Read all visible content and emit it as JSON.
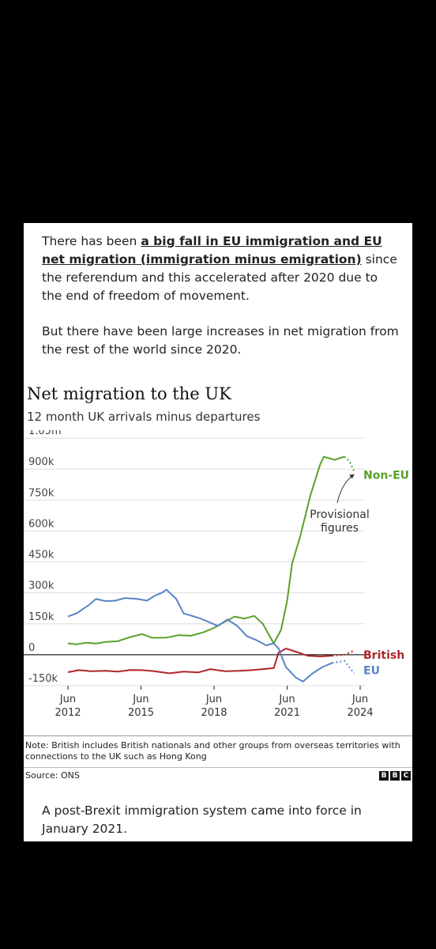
{
  "intro": {
    "p1_start": "There has been ",
    "p1_highlight": "a big fall in EU immigration and EU net migration (immigration minus emigration)",
    "p1_end": " since the referendum and this accelerated after 2020 due to the end of freedom of movement.",
    "p2": "But there have been large increases in net migration from the rest of the world since 2020."
  },
  "chart_data": {
    "type": "line",
    "title": "Net migration to the UK",
    "subtitle": "12 month UK arrivals minus departures",
    "ylim": [
      -150,
      1050
    ],
    "yticks": [
      {
        "v": 1050,
        "label": "1.05m"
      },
      {
        "v": 900,
        "label": "900k"
      },
      {
        "v": 750,
        "label": "750k"
      },
      {
        "v": 600,
        "label": "600k"
      },
      {
        "v": 450,
        "label": "450k"
      },
      {
        "v": 300,
        "label": "300k"
      },
      {
        "v": 150,
        "label": "150k"
      },
      {
        "v": 0,
        "label": "0"
      },
      {
        "v": -150,
        "label": "-150k"
      }
    ],
    "xlim": [
      2012.45,
      2024.45
    ],
    "xticks": [
      {
        "v": 2012.45,
        "line1": "Jun",
        "line2": "2012"
      },
      {
        "v": 2015.45,
        "line1": "Jun",
        "line2": "2015"
      },
      {
        "v": 2018.45,
        "line1": "Jun",
        "line2": "2018"
      },
      {
        "v": 2021.45,
        "line1": "Jun",
        "line2": "2021"
      },
      {
        "v": 2024.45,
        "line1": "Jun",
        "line2": "2024"
      }
    ],
    "annotation": {
      "line1": "Provisional",
      "line2": "figures"
    },
    "series": [
      {
        "name": "Non-EU",
        "color": "#5aa02c",
        "points": [
          [
            2012.45,
            55
          ],
          [
            2012.8,
            50
          ],
          [
            2013.2,
            58
          ],
          [
            2013.6,
            54
          ],
          [
            2014.0,
            62
          ],
          [
            2014.5,
            66
          ],
          [
            2015.0,
            85
          ],
          [
            2015.5,
            100
          ],
          [
            2015.9,
            82
          ],
          [
            2016.5,
            83
          ],
          [
            2017.0,
            95
          ],
          [
            2017.5,
            92
          ],
          [
            2018.0,
            108
          ],
          [
            2018.45,
            130
          ],
          [
            2018.9,
            160
          ],
          [
            2019.3,
            185
          ],
          [
            2019.7,
            175
          ],
          [
            2020.1,
            188
          ],
          [
            2020.45,
            150
          ],
          [
            2020.9,
            55
          ],
          [
            2021.2,
            120
          ],
          [
            2021.45,
            260
          ],
          [
            2021.65,
            440
          ],
          [
            2022.0,
            580
          ],
          [
            2022.4,
            770
          ],
          [
            2022.8,
            920
          ],
          [
            2022.95,
            960
          ],
          [
            2023.4,
            945
          ],
          [
            2023.8,
            960
          ]
        ],
        "provisional": [
          [
            2023.8,
            960
          ],
          [
            2024.0,
            940
          ],
          [
            2024.2,
            890
          ]
        ]
      },
      {
        "name": "British",
        "color": "#b0252a",
        "points": [
          [
            2012.45,
            -85
          ],
          [
            2012.9,
            -75
          ],
          [
            2013.4,
            -80
          ],
          [
            2014.0,
            -78
          ],
          [
            2014.5,
            -82
          ],
          [
            2015.0,
            -74
          ],
          [
            2015.5,
            -75
          ],
          [
            2016.0,
            -80
          ],
          [
            2016.6,
            -90
          ],
          [
            2017.2,
            -82
          ],
          [
            2017.8,
            -86
          ],
          [
            2018.3,
            -70
          ],
          [
            2018.9,
            -80
          ],
          [
            2019.5,
            -78
          ],
          [
            2020.0,
            -75
          ],
          [
            2020.45,
            -70
          ],
          [
            2020.9,
            -65
          ],
          [
            2021.1,
            10
          ],
          [
            2021.4,
            30
          ],
          [
            2021.8,
            15
          ],
          [
            2022.3,
            -5
          ],
          [
            2022.8,
            -8
          ],
          [
            2023.3,
            -5
          ]
        ],
        "provisional": [
          [
            2023.3,
            -5
          ],
          [
            2023.8,
            0
          ],
          [
            2024.2,
            20
          ]
        ]
      },
      {
        "name": "EU",
        "color": "#5a83c6",
        "points": [
          [
            2012.45,
            185
          ],
          [
            2012.8,
            200
          ],
          [
            2013.3,
            240
          ],
          [
            2013.6,
            270
          ],
          [
            2014.0,
            260
          ],
          [
            2014.4,
            262
          ],
          [
            2014.8,
            275
          ],
          [
            2015.3,
            270
          ],
          [
            2015.7,
            262
          ],
          [
            2016.0,
            285
          ],
          [
            2016.3,
            300
          ],
          [
            2016.5,
            315
          ],
          [
            2016.9,
            270
          ],
          [
            2017.2,
            200
          ],
          [
            2017.5,
            190
          ],
          [
            2017.9,
            175
          ],
          [
            2018.3,
            155
          ],
          [
            2018.6,
            140
          ],
          [
            2019.0,
            170
          ],
          [
            2019.4,
            140
          ],
          [
            2019.8,
            90
          ],
          [
            2020.2,
            70
          ],
          [
            2020.6,
            45
          ],
          [
            2020.9,
            55
          ],
          [
            2021.1,
            30
          ],
          [
            2021.4,
            -60
          ],
          [
            2021.8,
            -110
          ],
          [
            2022.1,
            -130
          ],
          [
            2022.5,
            -90
          ],
          [
            2022.9,
            -60
          ],
          [
            2023.3,
            -40
          ]
        ],
        "provisional": [
          [
            2023.3,
            -40
          ],
          [
            2023.8,
            -30
          ],
          [
            2024.2,
            -90
          ]
        ]
      }
    ],
    "grid": true,
    "legend": "direct labels at right"
  },
  "note": "Note: British includes British nationals and other groups from overseas territories with connections to the UK such as Hong Kong",
  "source": "Source: ONS",
  "logo_letters": [
    "B",
    "B",
    "C"
  ],
  "outro": "A post-Brexit immigration system came into force in January 2021."
}
